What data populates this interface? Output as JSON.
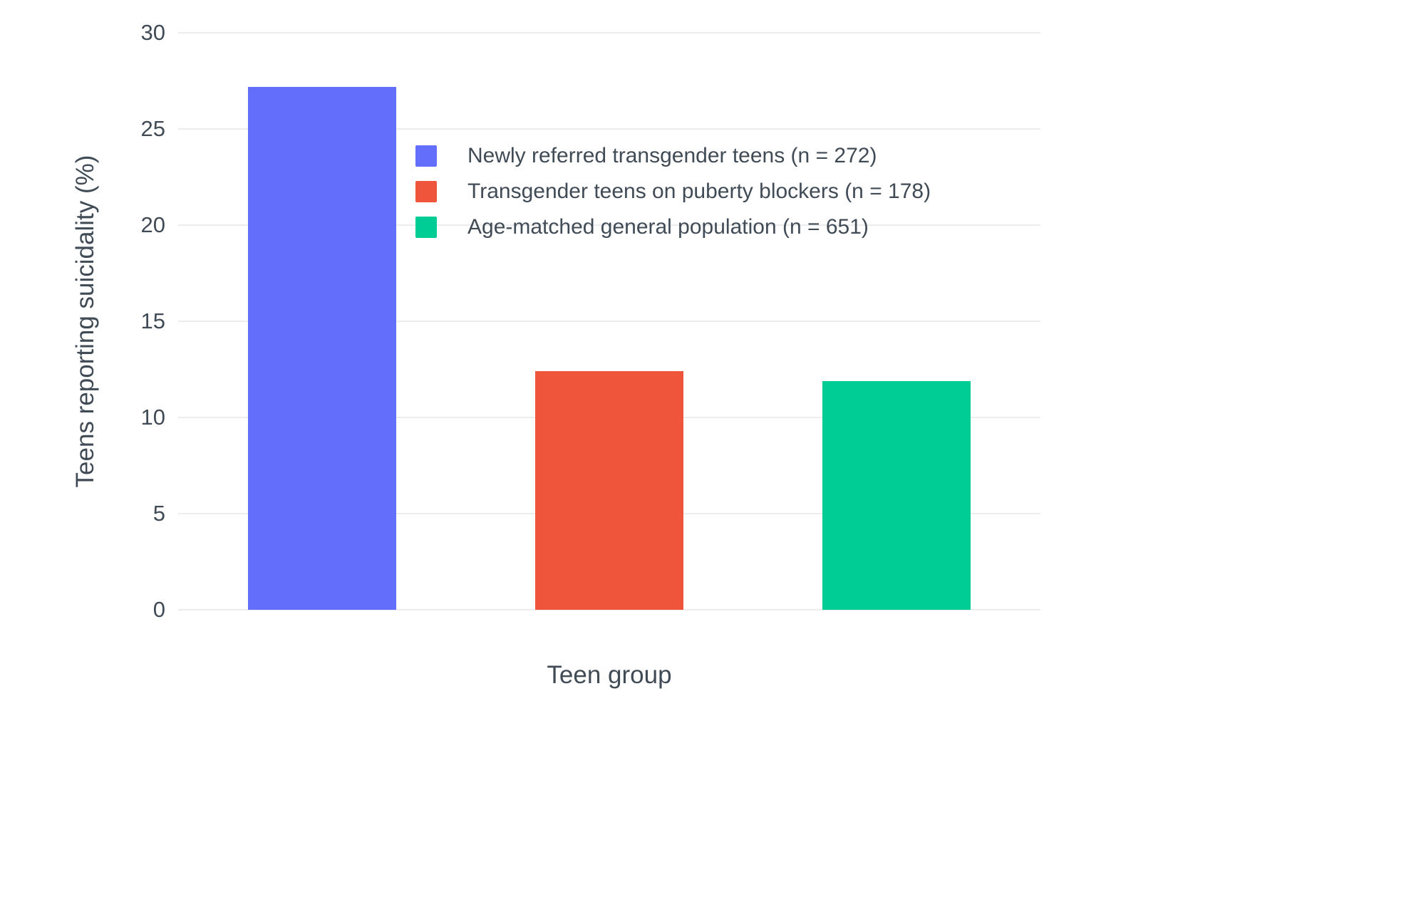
{
  "chart_data": {
    "type": "bar",
    "title": "",
    "xlabel": "Teen group",
    "ylabel": "Teens reporting suicidality (%)",
    "ylim": [
      0,
      30
    ],
    "yticks": [
      0,
      5,
      10,
      15,
      20,
      25,
      30
    ],
    "grid": true,
    "legend_position": "inside top-left of plot",
    "series": [
      {
        "name": "Newly referred transgender teens (n = 272)",
        "value": 27.2,
        "color": "#636EFA"
      },
      {
        "name": "Transgender teens on puberty blockers (n = 178)",
        "value": 12.4,
        "color": "#EF553B"
      },
      {
        "name": "Age-matched general population (n = 651)",
        "value": 11.9,
        "color": "#00CC96"
      }
    ]
  }
}
